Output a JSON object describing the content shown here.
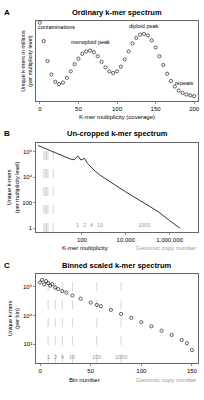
{
  "chart_data": [
    {
      "type": "scatter",
      "panel_label": "A",
      "title": "Ordinary k-mer spectrum",
      "x_label": "K-mer multiplicity (coverage)",
      "y_label": "Unique k-mers in millions (per multiplicity level)",
      "x": [
        0,
        5,
        10,
        15,
        20,
        25,
        30,
        35,
        40,
        45,
        50,
        55,
        60,
        65,
        70,
        75,
        80,
        85,
        90,
        95,
        100,
        105,
        110,
        115,
        120,
        125,
        130,
        135,
        140,
        145,
        150,
        155,
        160,
        165,
        170,
        175,
        180,
        185,
        190,
        195,
        200
      ],
      "values": [
        9.8,
        7.5,
        5.0,
        3.3,
        2.4,
        2.1,
        2.3,
        2.9,
        3.7,
        4.6,
        5.3,
        5.9,
        6.2,
        6.3,
        6.1,
        5.6,
        4.9,
        4.2,
        3.7,
        3.5,
        3.7,
        4.3,
        5.2,
        6.2,
        7.2,
        7.9,
        8.3,
        8.4,
        8.2,
        7.6,
        6.7,
        5.6,
        4.5,
        3.4,
        2.5,
        1.8,
        1.3,
        1.0,
        0.8,
        0.7,
        0.6
      ],
      "xlim": [
        -5,
        205
      ],
      "ylim": [
        0,
        10
      ],
      "xticks": [
        0,
        50,
        100,
        150,
        200
      ],
      "tick_labels": "x",
      "grid": false,
      "marker": "circle-open",
      "color": "#000000",
      "annotations": [
        {
          "text": "contaminations",
          "x": 22,
          "y": 9.3
        },
        {
          "text": "monoploid peak",
          "x": 65,
          "y": 7.4
        },
        {
          "text": "diploid peak",
          "x": 135,
          "y": 9.4
        },
        {
          "text": "repeats",
          "x": 188,
          "y": 2.3
        }
      ]
    },
    {
      "type": "line",
      "panel_label": "B",
      "title": "Un-cropped k-mer spectrum",
      "x_label": "K-mer multiplicity",
      "y_label": "Unique k-mers (per multiplicity level)",
      "x": [
        1,
        2,
        3,
        5,
        7,
        10,
        15,
        20,
        30,
        45,
        65,
        90,
        130,
        180,
        260,
        400,
        650,
        1000,
        2000,
        5000,
        10000,
        30000,
        100000,
        300000,
        1000000,
        3000000
      ],
      "values": [
        3000000,
        1800000,
        1300000,
        900000,
        700000,
        550000,
        400000,
        320000,
        260000,
        230000,
        450000,
        220000,
        300000,
        120000,
        60000,
        30000,
        15000,
        9000,
        4000,
        1500,
        700,
        220,
        60,
        20,
        4,
        1
      ],
      "xlim": [
        0.8,
        20000000
      ],
      "ylim": [
        0.5,
        5000000
      ],
      "xticks": [
        100,
        {
          "value": 10000,
          "label": "10,000"
        },
        {
          "value": 1000000,
          "label": "1,000,000"
        }
      ],
      "yticks": [
        1,
        100,
        {
          "value": 10000,
          "label": "10⁴"
        },
        {
          "value": 1000000,
          "label": "10⁶"
        }
      ],
      "log": true,
      "grid": false,
      "line_style": "solid",
      "color": "#000000",
      "copy_number_title": "Genomic copy number",
      "copy_number_ticks": [
        {
          "value": 65,
          "label": "1"
        },
        {
          "value": 130,
          "label": "2"
        },
        {
          "value": 260,
          "label": "4"
        },
        {
          "value": 650,
          "label": "10"
        },
        {
          "value": 65000,
          "label": "1000"
        }
      ]
    },
    {
      "type": "scatter",
      "panel_label": "C",
      "title": "Binned scaled k-mer spectrum",
      "x_label": "Bin number",
      "y_label": "Unique k-mers (per bin)",
      "x": [
        0,
        2,
        4,
        6,
        8,
        10,
        12,
        15,
        18,
        22,
        26,
        32,
        40,
        50,
        56,
        60,
        70,
        80,
        90,
        100,
        110,
        120,
        130,
        140,
        145,
        150
      ],
      "values": [
        2000000,
        3000000,
        1500000,
        2500000,
        1800000,
        1200000,
        1500000,
        900000,
        700000,
        500000,
        400000,
        250000,
        150000,
        80000,
        55000,
        45000,
        25000,
        13000,
        7000,
        3500,
        1800,
        900,
        450,
        200,
        120,
        40
      ],
      "xlim": [
        -4,
        156
      ],
      "ylim": [
        5,
        8000000
      ],
      "xticks": [
        0,
        50,
        100,
        150
      ],
      "yticks": [
        {
          "value": 100,
          "label": "10²"
        },
        {
          "value": 10000,
          "label": "10⁴"
        },
        {
          "value": 1000000,
          "label": "10⁶"
        }
      ],
      "log": "y",
      "grid": false,
      "marker": "circle-open",
      "color": "#000000",
      "copy_number_title": "Genomic copy number",
      "copy_number_ticks": [
        {
          "value": 8,
          "label": "1"
        },
        {
          "value": 15,
          "label": "2"
        },
        {
          "value": 22,
          "label": "4"
        },
        {
          "value": 32,
          "label": "10"
        },
        {
          "value": 56,
          "label": "100"
        },
        {
          "value": 80,
          "label": "1000"
        }
      ]
    }
  ]
}
